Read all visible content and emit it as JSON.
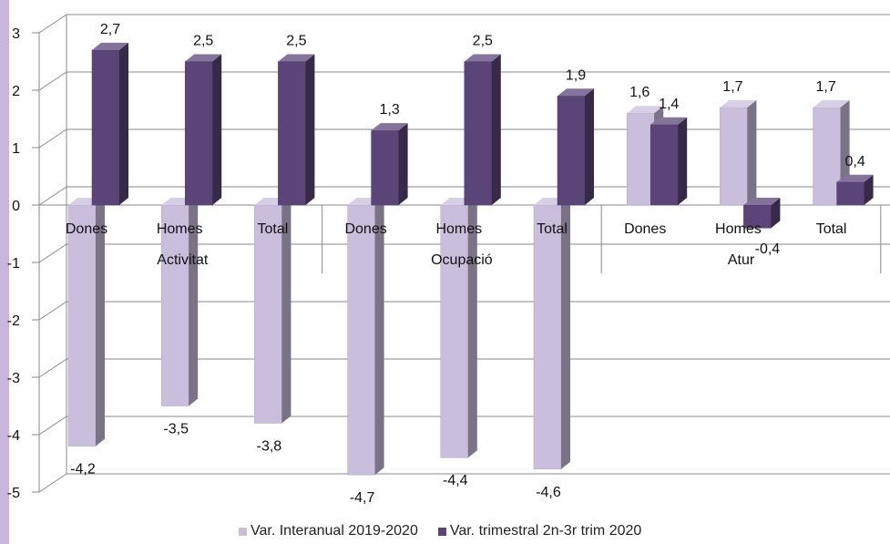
{
  "chart_data": {
    "type": "bar",
    "groups": [
      {
        "label": "Activitat",
        "categories": [
          "Dones",
          "Homes",
          "Total"
        ]
      },
      {
        "label": "Ocupació",
        "categories": [
          "Dones",
          "Homes",
          "Total"
        ]
      },
      {
        "label": "Atur",
        "categories": [
          "Dones",
          "Homes",
          "Total"
        ]
      }
    ],
    "series": [
      {
        "name": "Var. Interanual 2019-2020",
        "color": "#c9bfdd",
        "values": [
          -4.2,
          -3.5,
          -3.8,
          -4.7,
          -4.4,
          -4.6,
          1.6,
          1.7,
          1.7
        ],
        "labels": [
          "-4,2",
          "-3,5",
          "-3,8",
          "-4,7",
          "-4,4",
          "-4,6",
          "1,6",
          "1,7",
          "1,7"
        ]
      },
      {
        "name": "Var. trimestral 2n-3r trim 2020",
        "color": "#5b4478",
        "values": [
          2.7,
          2.5,
          2.5,
          1.3,
          2.5,
          1.9,
          1.4,
          -0.4,
          0.4
        ],
        "labels": [
          "2,7",
          "2,5",
          "2,5",
          "1,3",
          "2,5",
          "1,9",
          "1,4",
          "-0,4",
          "0,4"
        ]
      }
    ],
    "y_ticks": [
      "3",
      "2",
      "1",
      "0",
      "-1",
      "-2",
      "-3",
      "-4",
      "-5"
    ],
    "ylim": [
      -5,
      3
    ],
    "chart_style": "3d-clustered-column",
    "grid": true,
    "legend_position": "bottom"
  }
}
